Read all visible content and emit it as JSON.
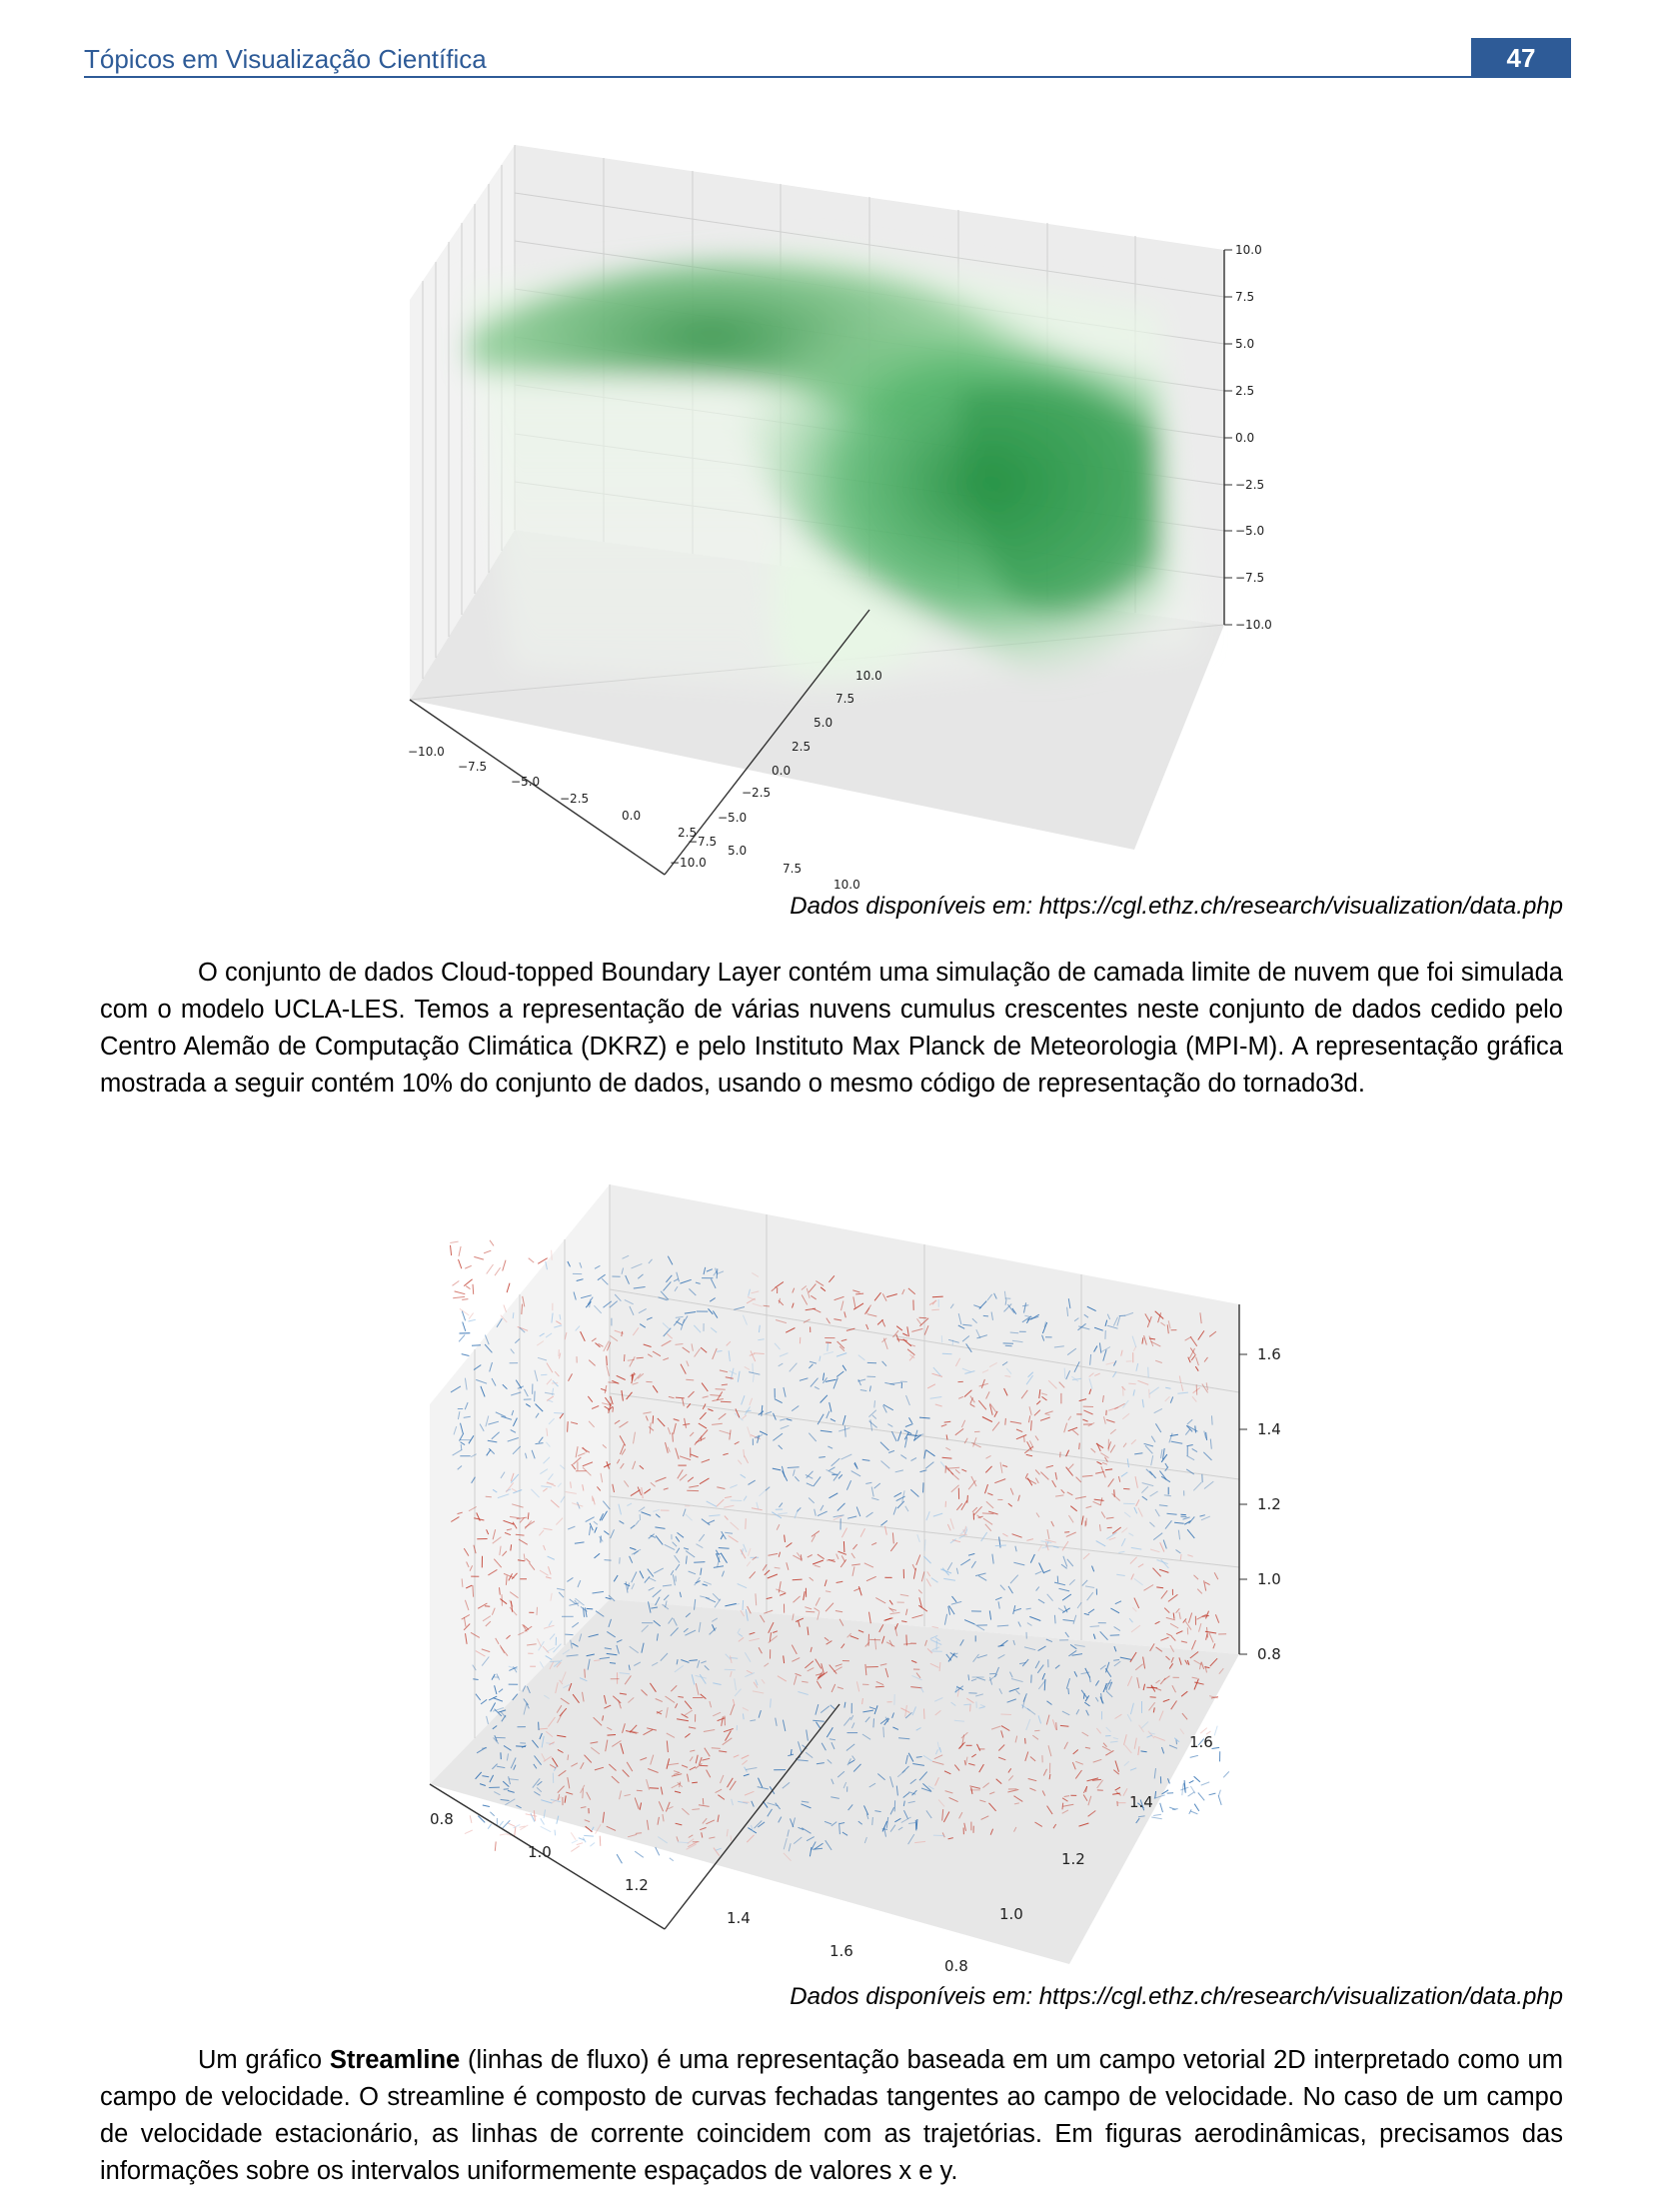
{
  "header": {
    "title": "Tópicos em Visualização Científica",
    "page_number": "47"
  },
  "figure1": {
    "colormap": "Greens",
    "accent": "#1b8a3a",
    "x_ticks": [
      "−10.0",
      "−7.5",
      "−5.0",
      "−2.5",
      "0.0",
      "2.5",
      "5.0",
      "7.5",
      "10.0"
    ],
    "y_ticks": [
      "−10.0",
      "−7.5",
      "−5.0",
      "−2.5",
      "0.0",
      "2.5",
      "5.0",
      "7.5",
      "10.0"
    ],
    "z_ticks": [
      "−10.0",
      "−7.5",
      "−5.0",
      "−2.5",
      "0.0",
      "2.5",
      "5.0",
      "7.5",
      "10.0"
    ],
    "caption": "Dados disponíveis em: https://cgl.ethz.ch/research/visualization/data.php"
  },
  "paragraph1": "O conjunto de dados Cloud-topped Boundary Layer contém uma simulação de camada limite de nuvem que foi simulada com o modelo UCLA-LES. Temos a representação de várias nuvens cumulus crescentes neste conjunto de dados cedido pelo Centro Alemão de Computação Climática (DKRZ) e pelo Instituto Max Planck de Meteorologia (MPI-M). A representação gráfica mostrada a seguir contém 10% do conjunto de dados, usando o mesmo código de representação do tornado3d.",
  "figure2": {
    "colors": {
      "warm": "#c0392b",
      "cool": "#2b6cb0"
    },
    "x_ticks": [
      "0.8",
      "1.0",
      "1.2",
      "1.4",
      "1.6"
    ],
    "y_ticks": [
      "0.8",
      "1.0",
      "1.2",
      "1.4",
      "1.6"
    ],
    "z_ticks": [
      "0.8",
      "1.0",
      "1.2",
      "1.4",
      "1.6"
    ],
    "caption": "Dados disponíveis em: https://cgl.ethz.ch/research/visualization/data.php"
  },
  "paragraph2": {
    "lead": "Um gráfico ",
    "bold": "Streamline",
    "rest": " (linhas de fluxo) é uma representação baseada em um campo vetorial 2D interpretado como um campo de velocidade. O streamline é composto de curvas fechadas tangentes ao campo de velocidade. No caso de um campo de velocidade estacionário, as linhas de corrente coincidem com as trajetórias. Em figuras aerodinâmicas, precisamos das informações sobre os intervalos uniformemente espaçados de valores x e y."
  }
}
